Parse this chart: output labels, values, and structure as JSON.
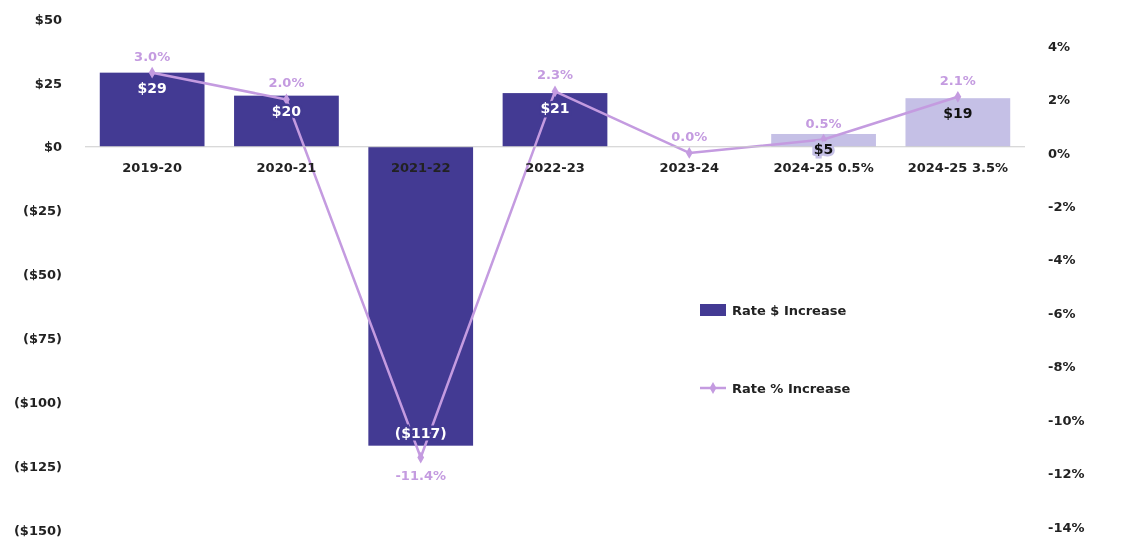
{
  "chart_data": {
    "type": "bar",
    "categories": [
      "2019-20",
      "2020-21",
      "2021-22",
      "2022-23",
      "2023-24",
      "2024-25 0.5%",
      "2024-25 3.5%"
    ],
    "series": [
      {
        "name": "Rate $ Increase",
        "colors": [
          "#433a93",
          "#433a93",
          "#433a93",
          "#433a93",
          "#433a93",
          "#c5c0e6",
          "#c5c0e6"
        ],
        "values": [
          29,
          20,
          -117,
          21,
          0,
          5,
          19
        ],
        "value_labels": [
          "$29",
          "$20",
          "($117)",
          "$21",
          null,
          "$5",
          "$19"
        ]
      },
      {
        "name": "Rate % Increase",
        "type": "line",
        "axis": "y2",
        "color": "#c49be0",
        "values": [
          3.0,
          2.0,
          -11.4,
          2.3,
          0.0,
          0.5,
          2.1
        ],
        "value_labels": [
          "3.0%",
          "2.0%",
          "-11.4%",
          "2.3%",
          "0.0%",
          "0.5%",
          "2.1%"
        ]
      }
    ],
    "ylim": [
      -150,
      50
    ],
    "yticks": [
      {
        "value": 50,
        "label": "$50"
      },
      {
        "value": 25,
        "label": "$25"
      },
      {
        "value": 0,
        "label": "$0"
      },
      {
        "value": -25,
        "label": "($25)"
      },
      {
        "value": -50,
        "label": "($50)"
      },
      {
        "value": -75,
        "label": "($75)"
      },
      {
        "value": -100,
        "label": "($100)"
      },
      {
        "value": -125,
        "label": "($125)"
      },
      {
        "value": -150,
        "label": "($150)"
      }
    ],
    "y2lim": [
      -14,
      4
    ],
    "y2ticks": [
      {
        "value": 4,
        "label": "4%"
      },
      {
        "value": 2,
        "label": "2%"
      },
      {
        "value": 0,
        "label": "0%"
      },
      {
        "value": -2,
        "label": "-2%"
      },
      {
        "value": -4,
        "label": "-4%"
      },
      {
        "value": -6,
        "label": "-6%"
      },
      {
        "value": -8,
        "label": "-8%"
      },
      {
        "value": -10,
        "label": "-10%"
      },
      {
        "value": -12,
        "label": "-12%"
      },
      {
        "value": -14,
        "label": "-14%"
      }
    ],
    "legend": "right",
    "marker": "diamond",
    "grid": false
  }
}
